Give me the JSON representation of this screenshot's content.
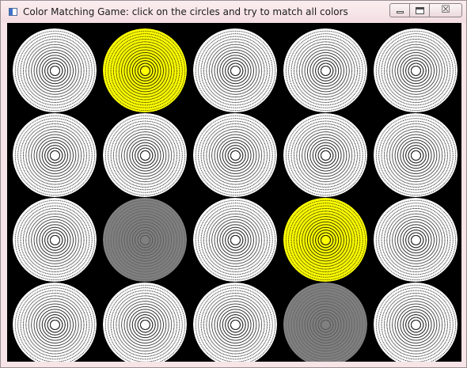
{
  "window": {
    "title": "Color Matching Game: click on the circles and try to match all colors",
    "icon": "app-window-icon",
    "buttons": {
      "minimize": "minimize-icon",
      "maximize": "maximize-icon",
      "close_label": "☒"
    }
  },
  "board": {
    "background": "#000000",
    "rows": 4,
    "cols": 5,
    "palette": {
      "white": "#ffffff",
      "yellow": "#ffff00",
      "gray": "#808080"
    },
    "circles": [
      [
        "white",
        "yellow",
        "white",
        "white",
        "white"
      ],
      [
        "white",
        "white",
        "white",
        "white",
        "white"
      ],
      [
        "white",
        "gray",
        "white",
        "yellow",
        "white"
      ],
      [
        "white",
        "white",
        "white",
        "gray",
        "white"
      ]
    ]
  }
}
